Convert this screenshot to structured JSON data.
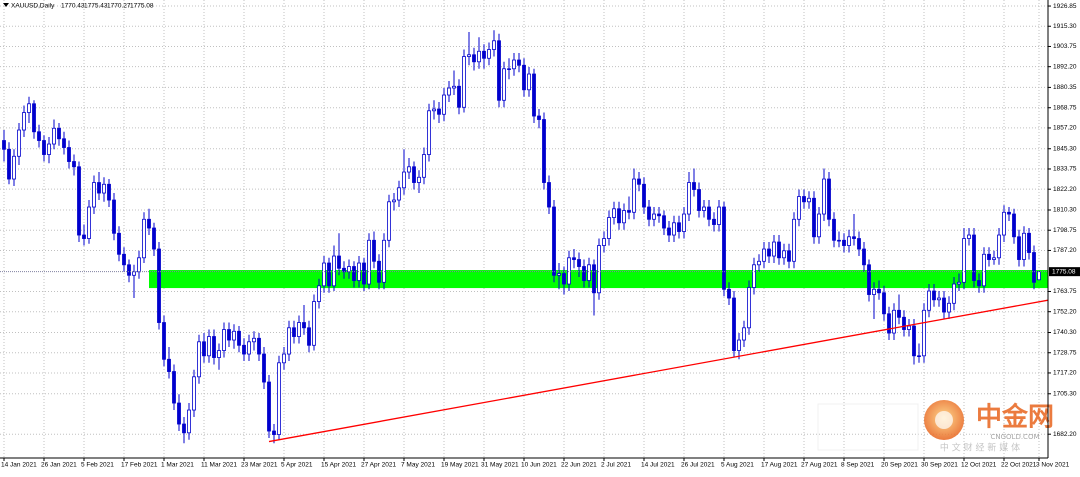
{
  "chart_data": {
    "type": "candlestick",
    "symbol": "XAUUSD,Daily",
    "color": "#0000cd",
    "grid": true,
    "xlim": [
      -0.8,
      208.8
    ],
    "ylim": [
      1668.6,
      1930.3
    ],
    "yticks": [
      1926.85,
      {
        "value": 1915.3,
        "label": "1915.30"
      },
      1903.75,
      {
        "value": 1892.2,
        "label": "1892.20"
      },
      1880.35,
      1868.75,
      {
        "value": 1857.2,
        "label": "1857.20"
      },
      {
        "value": 1845.3,
        "label": "1845.30"
      },
      1833.75,
      {
        "value": 1822.2,
        "label": "1822.20"
      },
      {
        "value": 1810.3,
        "label": "1810.30"
      },
      1798.75,
      {
        "value": 1787.2,
        "label": "1787.20"
      },
      1763.75,
      {
        "value": 1752.2,
        "label": "1752.20"
      },
      {
        "value": 1740.3,
        "label": "1740.30"
      },
      1728.75,
      {
        "value": 1717.2,
        "label": "1717.20"
      },
      {
        "value": 1705.3,
        "label": "1705.30"
      },
      {
        "value": 1682.2,
        "label": "1682.20"
      }
    ],
    "xticks": [
      {
        "value": 0,
        "label": "14 Jan 2021"
      },
      {
        "value": 8,
        "label": "26 Jan 2021"
      },
      {
        "value": 16,
        "label": "5 Feb 2021"
      },
      {
        "value": 24,
        "label": "17 Feb 2021"
      },
      {
        "value": 32,
        "label": "1 Mar 2021"
      },
      {
        "value": 40,
        "label": "11 Mar 2021"
      },
      {
        "value": 48,
        "label": "23 Mar 2021"
      },
      {
        "value": 56,
        "label": "5 Apr 2021"
      },
      {
        "value": 64,
        "label": "15 Apr 2021"
      },
      {
        "value": 72,
        "label": "27 Apr 2021"
      },
      {
        "value": 80,
        "label": "7 May 2021"
      },
      {
        "value": 88,
        "label": "19 May 2021"
      },
      {
        "value": 96,
        "label": "31 May 2021"
      },
      {
        "value": 104,
        "label": "10 Jun 2021"
      },
      {
        "value": 112,
        "label": "22 Jun 2021"
      },
      {
        "value": 120,
        "label": "2 Jul 2021"
      },
      {
        "value": 128,
        "label": "14 Jul 2021"
      },
      {
        "value": 136,
        "label": "26 Jul 2021"
      },
      {
        "value": 144,
        "label": "5 Aug 2021"
      },
      {
        "value": 152,
        "label": "17 Aug 2021"
      },
      {
        "value": 160,
        "label": "27 Aug 2021"
      },
      {
        "value": 168,
        "label": "8 Sep 2021"
      },
      {
        "value": 176,
        "label": "20 Sep 2021"
      },
      {
        "value": 184,
        "label": "30 Sep 2021"
      },
      {
        "value": 192,
        "label": "12 Oct 2021"
      },
      {
        "value": 200,
        "label": "22 Oct 2021"
      },
      {
        "value": 207,
        "label": "3 Nov 2021"
      }
    ],
    "support_zone": {
      "start": 29,
      "ylim": [
        1765.7,
        1776
      ],
      "color": "#00ff00"
    },
    "trendline": {
      "x": [
        53,
        215
      ],
      "y": [
        1678,
        1762
      ],
      "color": "#ff0000"
    },
    "ohlc": [
      [
        1850,
        1856,
        1838,
        1845
      ],
      [
        1845,
        1849,
        1825,
        1828
      ],
      [
        1828,
        1845,
        1824,
        1841
      ],
      [
        1841,
        1860,
        1836,
        1856
      ],
      [
        1856,
        1870,
        1852,
        1866
      ],
      [
        1866,
        1875,
        1860,
        1871
      ],
      [
        1871,
        1873,
        1851,
        1855
      ],
      [
        1855,
        1859,
        1846,
        1850
      ],
      [
        1850,
        1853,
        1838,
        1842
      ],
      [
        1842,
        1852,
        1837,
        1848
      ],
      [
        1848,
        1862,
        1845,
        1857
      ],
      [
        1857,
        1860,
        1847,
        1851
      ],
      [
        1851,
        1855,
        1842,
        1846
      ],
      [
        1846,
        1850,
        1834,
        1838
      ],
      [
        1838,
        1842,
        1830,
        1835
      ],
      [
        1835,
        1838,
        1792,
        1796
      ],
      [
        1796,
        1802,
        1790,
        1794
      ],
      [
        1794,
        1816,
        1791,
        1812
      ],
      [
        1812,
        1830,
        1808,
        1826
      ],
      [
        1826,
        1832,
        1816,
        1820
      ],
      [
        1820,
        1829,
        1815,
        1825
      ],
      [
        1825,
        1828,
        1812,
        1816
      ],
      [
        1816,
        1820,
        1793,
        1797
      ],
      [
        1797,
        1801,
        1781,
        1785
      ],
      [
        1785,
        1789,
        1775,
        1779
      ],
      [
        1779,
        1782,
        1769,
        1773
      ],
      [
        1773,
        1779,
        1760,
        1775
      ],
      [
        1775,
        1787,
        1771,
        1783
      ],
      [
        1783,
        1809,
        1780,
        1805
      ],
      [
        1805,
        1811,
        1796,
        1800
      ],
      [
        1800,
        1803,
        1784,
        1788
      ],
      [
        1788,
        1792,
        1742,
        1746
      ],
      [
        1746,
        1750,
        1721,
        1725
      ],
      [
        1725,
        1732,
        1714,
        1718
      ],
      [
        1718,
        1722,
        1696,
        1700
      ],
      [
        1700,
        1705,
        1684,
        1688
      ],
      [
        1688,
        1692,
        1677,
        1683
      ],
      [
        1683,
        1700,
        1679,
        1696
      ],
      [
        1696,
        1719,
        1692,
        1715
      ],
      [
        1715,
        1739,
        1711,
        1735
      ],
      [
        1735,
        1740,
        1723,
        1727
      ],
      [
        1727,
        1742,
        1723,
        1738
      ],
      [
        1738,
        1742,
        1722,
        1726
      ],
      [
        1726,
        1734,
        1719,
        1730
      ],
      [
        1730,
        1746,
        1726,
        1742
      ],
      [
        1742,
        1746,
        1732,
        1736
      ],
      [
        1736,
        1745,
        1731,
        1741
      ],
      [
        1741,
        1744,
        1729,
        1733
      ],
      [
        1733,
        1737,
        1724,
        1728
      ],
      [
        1728,
        1739,
        1724,
        1735
      ],
      [
        1735,
        1741,
        1730,
        1737
      ],
      [
        1737,
        1740,
        1724,
        1728
      ],
      [
        1728,
        1732,
        1708,
        1712
      ],
      [
        1712,
        1716,
        1680,
        1684
      ],
      [
        1684,
        1688,
        1677,
        1682
      ],
      [
        1682,
        1727,
        1679,
        1723
      ],
      [
        1723,
        1732,
        1719,
        1728
      ],
      [
        1728,
        1747,
        1724,
        1743
      ],
      [
        1743,
        1747,
        1734,
        1738
      ],
      [
        1738,
        1750,
        1734,
        1746
      ],
      [
        1746,
        1756,
        1739,
        1743
      ],
      [
        1743,
        1747,
        1729,
        1733
      ],
      [
        1733,
        1762,
        1730,
        1758
      ],
      [
        1758,
        1771,
        1754,
        1767
      ],
      [
        1767,
        1784,
        1763,
        1780
      ],
      [
        1780,
        1783,
        1763,
        1767
      ],
      [
        1767,
        1790,
        1764,
        1784
      ],
      [
        1784,
        1797,
        1773,
        1777
      ],
      [
        1777,
        1781,
        1771,
        1775
      ],
      [
        1775,
        1782,
        1771,
        1778
      ],
      [
        1778,
        1781,
        1766,
        1770
      ],
      [
        1770,
        1784,
        1766,
        1780
      ],
      [
        1780,
        1783,
        1764,
        1768
      ],
      [
        1768,
        1797,
        1765,
        1793
      ],
      [
        1793,
        1798,
        1777,
        1781
      ],
      [
        1781,
        1785,
        1765,
        1769
      ],
      [
        1769,
        1797,
        1765,
        1793
      ],
      [
        1793,
        1819,
        1789,
        1815
      ],
      [
        1815,
        1820,
        1810,
        1816
      ],
      [
        1816,
        1827,
        1812,
        1823
      ],
      [
        1823,
        1845,
        1819,
        1832
      ],
      [
        1832,
        1840,
        1828,
        1835
      ],
      [
        1835,
        1838,
        1822,
        1826
      ],
      [
        1826,
        1833,
        1820,
        1829
      ],
      [
        1829,
        1846,
        1825,
        1842
      ],
      [
        1842,
        1871,
        1838,
        1867
      ],
      [
        1867,
        1873,
        1862,
        1868
      ],
      [
        1868,
        1872,
        1860,
        1865
      ],
      [
        1865,
        1880,
        1861,
        1876
      ],
      [
        1876,
        1884,
        1872,
        1880
      ],
      [
        1880,
        1890,
        1876,
        1881
      ],
      [
        1881,
        1885,
        1865,
        1869
      ],
      [
        1869,
        1902,
        1866,
        1898
      ],
      [
        1898,
        1912,
        1893,
        1899
      ],
      [
        1899,
        1903,
        1890,
        1895
      ],
      [
        1895,
        1909,
        1891,
        1901
      ],
      [
        1901,
        1905,
        1891,
        1897
      ],
      [
        1897,
        1906,
        1893,
        1902
      ],
      [
        1902,
        1913,
        1898,
        1907
      ],
      [
        1907,
        1911,
        1869,
        1873
      ],
      [
        1873,
        1895,
        1869,
        1891
      ],
      [
        1891,
        1897,
        1885,
        1891
      ],
      [
        1891,
        1900,
        1887,
        1896
      ],
      [
        1896,
        1900,
        1889,
        1893
      ],
      [
        1893,
        1897,
        1875,
        1879
      ],
      [
        1879,
        1892,
        1875,
        1888
      ],
      [
        1888,
        1891,
        1860,
        1864
      ],
      [
        1864,
        1868,
        1857,
        1862
      ],
      [
        1862,
        1866,
        1822,
        1826
      ],
      [
        1826,
        1830,
        1808,
        1812
      ],
      [
        1812,
        1816,
        1769,
        1773
      ],
      [
        1773,
        1780,
        1765,
        1774
      ],
      [
        1774,
        1778,
        1762,
        1768
      ],
      [
        1768,
        1787,
        1764,
        1783
      ],
      [
        1783,
        1788,
        1777,
        1782
      ],
      [
        1782,
        1786,
        1772,
        1778
      ],
      [
        1778,
        1782,
        1766,
        1770
      ],
      [
        1770,
        1783,
        1766,
        1779
      ],
      [
        1779,
        1782,
        1750,
        1763
      ],
      [
        1763,
        1794,
        1759,
        1790
      ],
      [
        1790,
        1798,
        1786,
        1794
      ],
      [
        1794,
        1810,
        1790,
        1806
      ],
      [
        1806,
        1815,
        1802,
        1811
      ],
      [
        1811,
        1815,
        1799,
        1803
      ],
      [
        1803,
        1814,
        1799,
        1810
      ],
      [
        1810,
        1818,
        1805,
        1809
      ],
      [
        1809,
        1834,
        1805,
        1828
      ],
      [
        1828,
        1832,
        1821,
        1825
      ],
      [
        1825,
        1829,
        1808,
        1812
      ],
      [
        1812,
        1816,
        1801,
        1805
      ],
      [
        1805,
        1812,
        1801,
        1808
      ],
      [
        1808,
        1812,
        1803,
        1807
      ],
      [
        1807,
        1810,
        1796,
        1800
      ],
      [
        1800,
        1804,
        1792,
        1796
      ],
      [
        1796,
        1807,
        1792,
        1803
      ],
      [
        1803,
        1807,
        1794,
        1798
      ],
      [
        1798,
        1812,
        1794,
        1808
      ],
      [
        1808,
        1832,
        1804,
        1826
      ],
      [
        1826,
        1834,
        1818,
        1822
      ],
      [
        1822,
        1826,
        1806,
        1810
      ],
      [
        1810,
        1816,
        1806,
        1812
      ],
      [
        1812,
        1816,
        1801,
        1805
      ],
      [
        1805,
        1809,
        1798,
        1802
      ],
      [
        1802,
        1816,
        1798,
        1812
      ],
      [
        1812,
        1815,
        1761,
        1765
      ],
      [
        1765,
        1769,
        1756,
        1760
      ],
      [
        1760,
        1764,
        1726,
        1730
      ],
      [
        1730,
        1740,
        1725,
        1736
      ],
      [
        1736,
        1747,
        1732,
        1743
      ],
      [
        1743,
        1770,
        1739,
        1766
      ],
      [
        1766,
        1783,
        1762,
        1779
      ],
      [
        1779,
        1785,
        1775,
        1781
      ],
      [
        1781,
        1792,
        1777,
        1788
      ],
      [
        1788,
        1792,
        1780,
        1784
      ],
      [
        1784,
        1796,
        1780,
        1792
      ],
      [
        1792,
        1796,
        1779,
        1783
      ],
      [
        1783,
        1791,
        1779,
        1787
      ],
      [
        1787,
        1791,
        1777,
        1781
      ],
      [
        1781,
        1809,
        1777,
        1805
      ],
      [
        1805,
        1822,
        1801,
        1818
      ],
      [
        1818,
        1822,
        1811,
        1815
      ],
      [
        1815,
        1821,
        1811,
        1817
      ],
      [
        1817,
        1821,
        1791,
        1795
      ],
      [
        1795,
        1812,
        1791,
        1808
      ],
      [
        1808,
        1834,
        1804,
        1828
      ],
      [
        1828,
        1832,
        1801,
        1805
      ],
      [
        1805,
        1809,
        1789,
        1793
      ],
      [
        1793,
        1798,
        1789,
        1793
      ],
      [
        1793,
        1797,
        1786,
        1790
      ],
      [
        1790,
        1799,
        1786,
        1795
      ],
      [
        1795,
        1808,
        1790,
        1794
      ],
      [
        1794,
        1798,
        1784,
        1788
      ],
      [
        1788,
        1792,
        1775,
        1779
      ],
      [
        1779,
        1782,
        1758,
        1762
      ],
      [
        1762,
        1769,
        1748,
        1765
      ],
      [
        1765,
        1770,
        1759,
        1763
      ],
      [
        1763,
        1767,
        1747,
        1751
      ],
      [
        1751,
        1755,
        1736,
        1740
      ],
      [
        1740,
        1757,
        1736,
        1753
      ],
      [
        1753,
        1762,
        1745,
        1749
      ],
      [
        1749,
        1753,
        1738,
        1742
      ],
      [
        1742,
        1748,
        1738,
        1744
      ],
      [
        1744,
        1748,
        1722,
        1727
      ],
      [
        1727,
        1734,
        1723,
        1727
      ],
      [
        1727,
        1757,
        1723,
        1753
      ],
      [
        1753,
        1768,
        1749,
        1764
      ],
      [
        1764,
        1768,
        1755,
        1759
      ],
      [
        1759,
        1764,
        1755,
        1760
      ],
      [
        1760,
        1764,
        1748,
        1752
      ],
      [
        1752,
        1761,
        1748,
        1757
      ],
      [
        1757,
        1772,
        1753,
        1768
      ],
      [
        1768,
        1774,
        1764,
        1769
      ],
      [
        1769,
        1800,
        1765,
        1794
      ],
      [
        1794,
        1800,
        1790,
        1796
      ],
      [
        1796,
        1800,
        1766,
        1770
      ],
      [
        1770,
        1774,
        1763,
        1767
      ],
      [
        1767,
        1789,
        1763,
        1785
      ],
      [
        1785,
        1789,
        1778,
        1782
      ],
      [
        1782,
        1787,
        1779,
        1783
      ],
      [
        1783,
        1800,
        1779,
        1796
      ],
      [
        1796,
        1813,
        1792,
        1809
      ],
      [
        1809,
        1812,
        1804,
        1808
      ],
      [
        1808,
        1811,
        1791,
        1795
      ],
      [
        1795,
        1799,
        1778,
        1782
      ],
      [
        1782,
        1801,
        1778,
        1797
      ],
      [
        1797,
        1800,
        1782,
        1786
      ],
      [
        1786,
        1790,
        1765,
        1769
      ],
      [
        1770.43,
        1775.43,
        1770.27,
        1775.08
      ]
    ]
  },
  "watermark": {
    "brand": "中金网",
    "domain": "CNGOLD.COM",
    "slogan": "中 文 财 经 新 媒 体"
  }
}
